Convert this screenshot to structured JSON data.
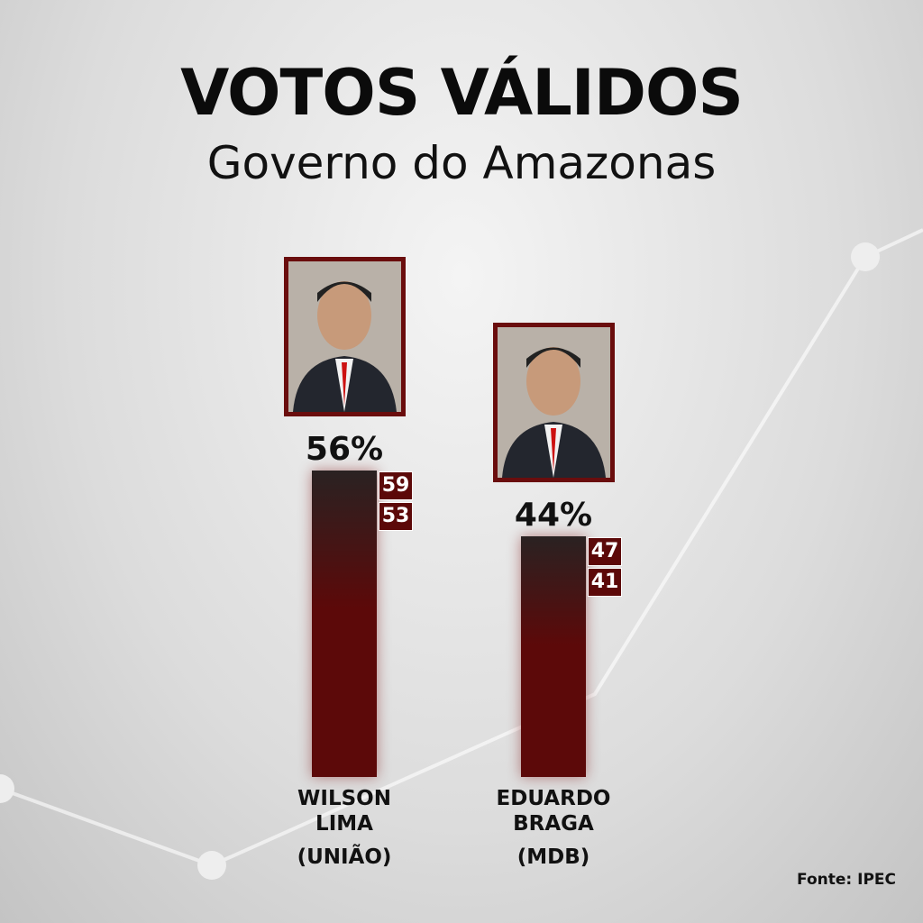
{
  "chart_data": {
    "type": "bar",
    "title": "VOTOS VÁLIDOS",
    "subtitle": "Governo do Amazonas",
    "categories": [
      "WILSON LIMA",
      "EDUARDO BRAGA"
    ],
    "parties": [
      "(UNIÃO)",
      "(MDB)"
    ],
    "values": [
      56,
      44
    ],
    "value_labels": [
      "56%",
      "44%"
    ],
    "upper": [
      59,
      47
    ],
    "lower": [
      53,
      41
    ],
    "source": "Fonte: IPEC",
    "color": "#5c0909"
  }
}
